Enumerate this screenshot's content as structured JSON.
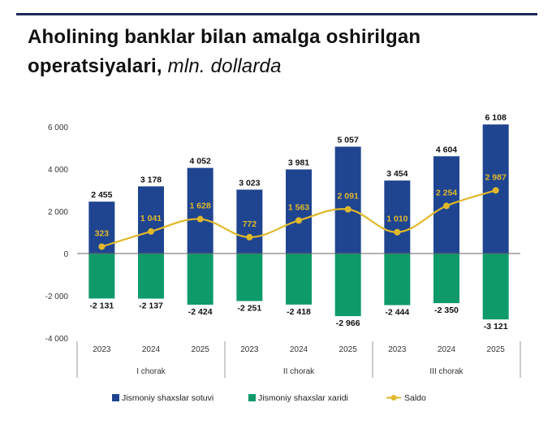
{
  "title": {
    "main": "Aholining banklar bilan amalga oshirilgan operatsiyalari,",
    "unit": "mln. dollarda"
  },
  "chart_data": {
    "type": "bar",
    "title": "Aholining banklar bilan amalga oshirilgan operatsiyalari, mln. dollarda",
    "categories": [
      "2023",
      "2024",
      "2025",
      "2023",
      "2024",
      "2025",
      "2023",
      "2024",
      "2025"
    ],
    "groups": [
      {
        "label": "I chorak",
        "span": 3
      },
      {
        "label": "II chorak",
        "span": 3
      },
      {
        "label": "III chorak",
        "span": 3
      }
    ],
    "ylim": [
      -4000,
      6000
    ],
    "yticks": [
      6000,
      4000,
      2000,
      0,
      -2000,
      -4000
    ],
    "ytick_labels": [
      "6 000",
      "4 000",
      "2 000",
      "0",
      "-2 000",
      "-4 000"
    ],
    "series": [
      {
        "name": "Jismoniy shaxslar sotuvi",
        "type": "bar",
        "color": "#1f4591",
        "values": [
          2455,
          3178,
          4052,
          3023,
          3981,
          5057,
          3454,
          4604,
          6108
        ],
        "labels": [
          "2 455",
          "3 178",
          "4 052",
          "3 023",
          "3 981",
          "5 057",
          "3 454",
          "4 604",
          "6 108"
        ]
      },
      {
        "name": "Jismoniy shaxslar xaridi",
        "type": "bar",
        "color": "#0f9a6a",
        "values": [
          -2131,
          -2137,
          -2424,
          -2251,
          -2418,
          -2966,
          -2444,
          -2350,
          -3121
        ],
        "labels": [
          "-2 131",
          "-2 137",
          "-2 424",
          "-2 251",
          "-2 418",
          "-2 966",
          "-2 444",
          "-2 350",
          "-3 121"
        ]
      },
      {
        "name": "Saldo",
        "type": "line",
        "color": "#e0b82a",
        "values": [
          323,
          1041,
          1628,
          772,
          1563,
          2091,
          1010,
          2254,
          2987
        ],
        "labels": [
          "323",
          "1 041",
          "1 628",
          "772",
          "1 563",
          "2 091",
          "1 010",
          "2 254",
          "2 987"
        ]
      }
    ],
    "legend_position": "bottom",
    "grid": false
  }
}
